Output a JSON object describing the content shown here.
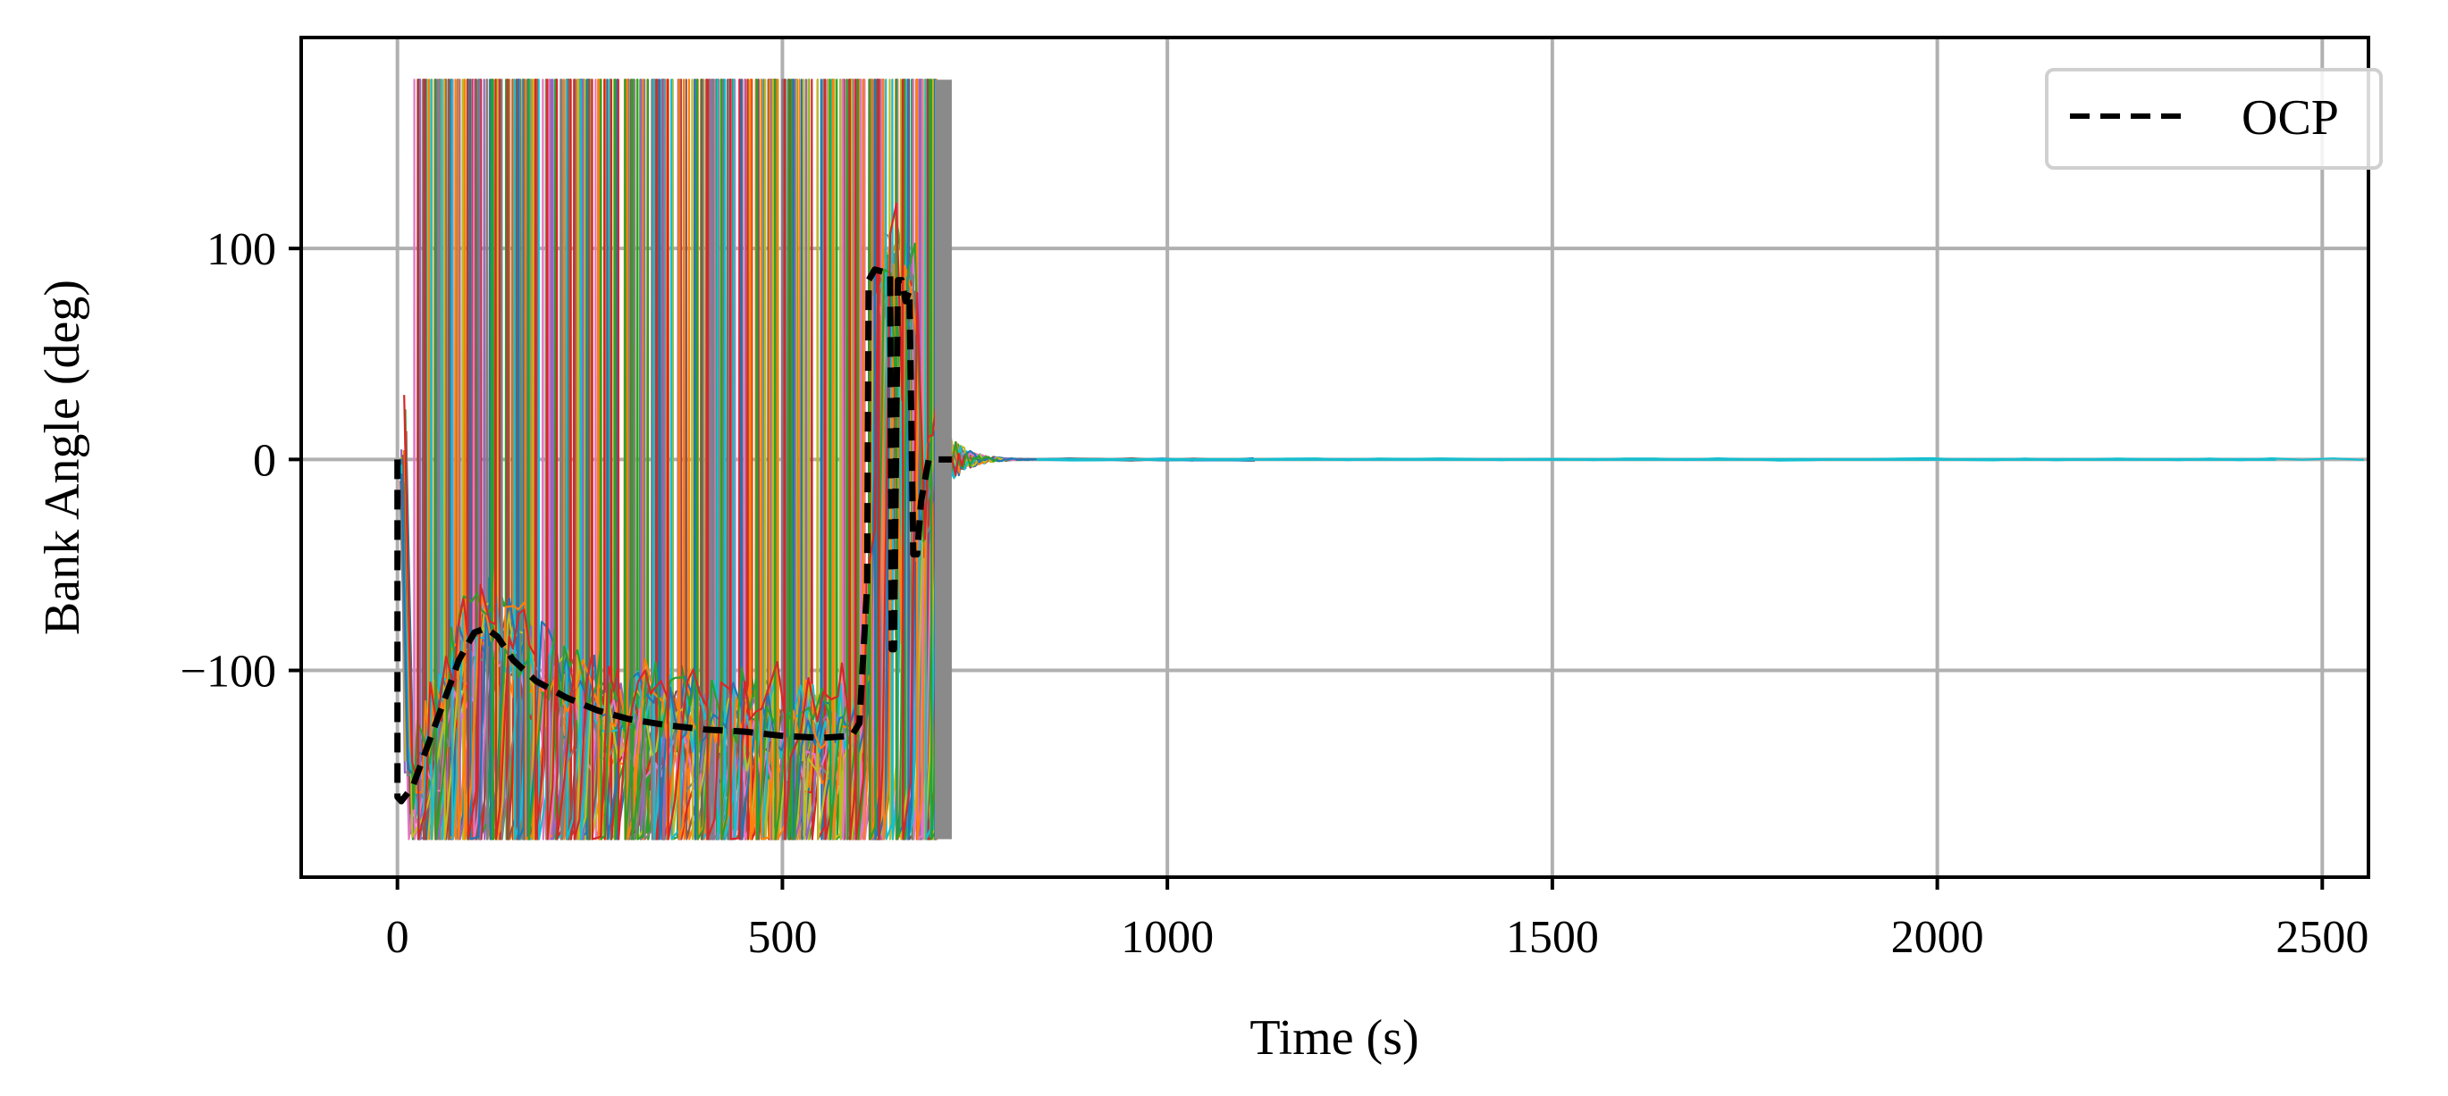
{
  "chart_data": {
    "type": "line",
    "title": "",
    "xlabel": "Time (s)",
    "ylabel": "Bank Angle (deg)",
    "xlim": [
      -125,
      2560
    ],
    "ylim": [
      -198,
      200
    ],
    "xticks": [
      0,
      500,
      1000,
      1500,
      2000,
      2500
    ],
    "yticks": [
      -100,
      0,
      100
    ],
    "ytick_labels": [
      "−100",
      "0",
      "100"
    ],
    "grid": true,
    "legend_position": "top-right",
    "legend": [
      "OCP"
    ],
    "series": [
      {
        "name": "OCP",
        "style": "dashed",
        "color": "#000000",
        "x": [
          0,
          0,
          5,
          20,
          40,
          60,
          80,
          100,
          115,
          130,
          150,
          180,
          220,
          260,
          300,
          350,
          400,
          450,
          500,
          550,
          590,
          600,
          610,
          612,
          620,
          630,
          640,
          642,
          645,
          650,
          655,
          660,
          665,
          670,
          675,
          680,
          690,
          700,
          720
        ],
        "y": [
          0,
          -160,
          -162,
          -155,
          -135,
          -115,
          -95,
          -82,
          -80,
          -84,
          -95,
          -105,
          -113,
          -119,
          -123,
          -126,
          -128,
          -129,
          -131,
          -132,
          -131,
          -125,
          -60,
          85,
          90,
          89,
          88,
          -90,
          -90,
          85,
          85,
          75,
          80,
          -45,
          -45,
          -20,
          0,
          0,
          0
        ]
      }
    ],
    "monte_carlo": {
      "count": 24,
      "colors": [
        "#1f77b4",
        "#ff7f0e",
        "#2ca02c",
        "#d62728",
        "#9467bd",
        "#8c564b",
        "#e377c2",
        "#7f7f7f",
        "#bcbd22",
        "#17becf"
      ]
    }
  }
}
